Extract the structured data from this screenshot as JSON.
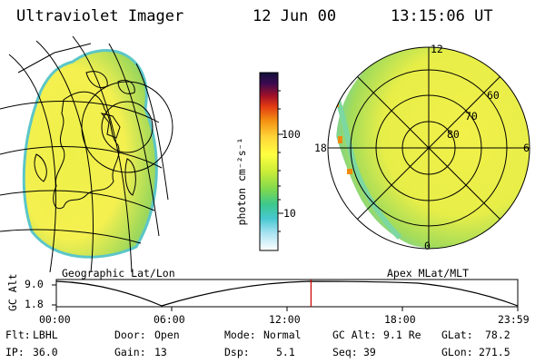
{
  "header": {
    "title": "Ultraviolet Imager",
    "date": "12 Jun 00",
    "time": "13:15:06 UT"
  },
  "panels": {
    "left_label": "Geographic Lat/Lon",
    "right_label": "Apex MLat/MLT"
  },
  "colorbar": {
    "unit_label": "photon cm⁻²s⁻¹",
    "ticks": [
      "100",
      "10"
    ],
    "colors": [
      "#1a1a60",
      "#3a0a50",
      "#7a1030",
      "#c01818",
      "#e04010",
      "#f08a10",
      "#ffc830",
      "#ffff40",
      "#e6f020",
      "#b6e640",
      "#7cd850",
      "#46c878",
      "#46c8c8",
      "#8fdcf0",
      "#cfeef8",
      "#f0f6fa",
      "#ffffff"
    ]
  },
  "polar": {
    "mlt_labels": [
      "12",
      "18",
      "6",
      "0"
    ],
    "lat_labels": [
      "60",
      "70",
      "80"
    ]
  },
  "altitude_plot": {
    "ylabel": "GC Alt",
    "y_ticks": [
      "9.0",
      "1.8"
    ],
    "x_ticks": [
      "00:00",
      "06:00",
      "12:00",
      "18:00",
      "23:59"
    ],
    "current_marker_color": "#cc0000",
    "current_fraction": 0.552
  },
  "info": {
    "flt_label": "Flt:",
    "flt_value": "LBHL",
    "ip_label": "IP:",
    "ip_value": "36.0",
    "door_label": "Door:",
    "door_value": "Open",
    "gain_label": "Gain:",
    "gain_value": "13",
    "mode_label": "Mode:",
    "mode_value": "Normal",
    "dsp_label": "Dsp:",
    "dsp_value": "5.1",
    "gcalt_label": "GC Alt:",
    "gcalt_value": "9.1 Re",
    "seq_label": "Seq:",
    "seq_value": "39",
    "glat_label": "GLat:",
    "glat_value": "78.2",
    "glon_label": "GLon:",
    "glon_value": "271.5"
  }
}
